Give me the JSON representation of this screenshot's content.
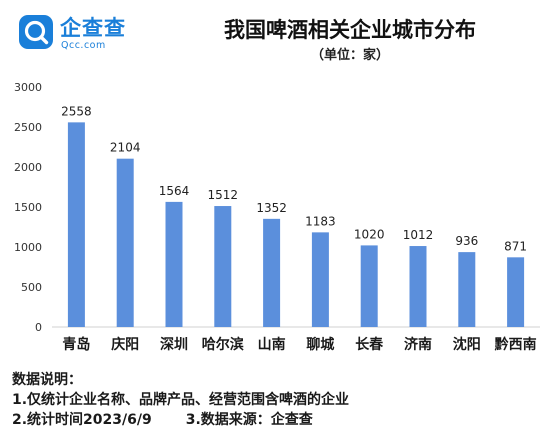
{
  "header": {
    "logo_name": "企查查",
    "logo_domain": "Qcc.com",
    "title": "我国啤酒相关企业城市分布",
    "subtitle": "（单位：家）"
  },
  "colors": {
    "bar": "#5b8fdc",
    "brand": "#1a7fd9",
    "axis": "#d0d0d0"
  },
  "chart_data": {
    "type": "bar",
    "title": "我国啤酒相关企业城市分布",
    "unit": "（单位：家）",
    "categories": [
      "青岛",
      "庆阳",
      "深圳",
      "哈尔滨",
      "山南",
      "聊城",
      "长春",
      "济南",
      "沈阳",
      "黔西南"
    ],
    "values": [
      2558,
      2104,
      1564,
      1512,
      1352,
      1183,
      1020,
      1012,
      936,
      871
    ],
    "ylim": [
      0,
      3000
    ],
    "yticks": [
      0,
      500,
      1000,
      1500,
      2000,
      2500,
      3000
    ],
    "grid": false,
    "legend": "none",
    "data_labels": true
  },
  "notes": {
    "heading": "数据说明：",
    "line1": "1.仅统计企业名称、品牌产品、经营范围含啤酒的企业",
    "line2_left": "2.统计时间2023/6/9",
    "line2_right": "3.数据来源：企查查"
  }
}
